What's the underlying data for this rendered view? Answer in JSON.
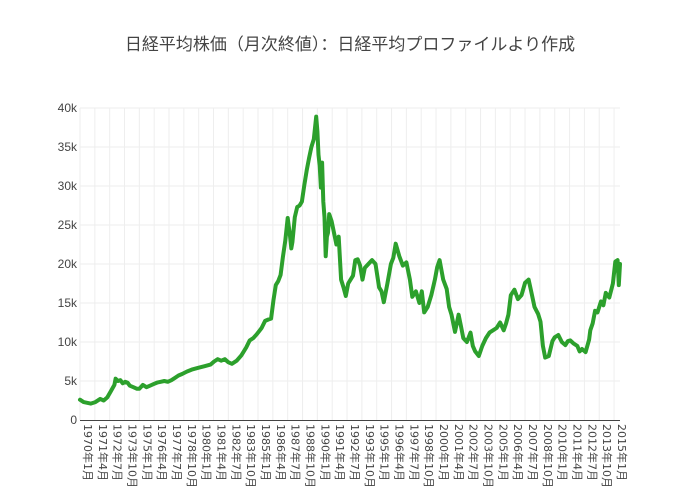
{
  "chart_data": {
    "type": "line",
    "title": "日経平均株価（月次終値）：日経平均プロファイルより作成",
    "xlabel": "",
    "ylabel": "",
    "ylim": [
      0,
      40000
    ],
    "yticks": [
      {
        "value": 0,
        "label": "0"
      },
      {
        "value": 5000,
        "label": "5k"
      },
      {
        "value": 10000,
        "label": "10k"
      },
      {
        "value": 15000,
        "label": "15k"
      },
      {
        "value": 20000,
        "label": "20k"
      },
      {
        "value": 25000,
        "label": "25k"
      },
      {
        "value": 30000,
        "label": "30k"
      },
      {
        "value": 35000,
        "label": "35k"
      },
      {
        "value": 40000,
        "label": "40k"
      }
    ],
    "xlim": [
      1970.0,
      2015.5
    ],
    "xticks": [
      {
        "value": 1970.0,
        "label": "1970年1月"
      },
      {
        "value": 1971.25,
        "label": "1971年4月"
      },
      {
        "value": 1972.5,
        "label": "1972年7月"
      },
      {
        "value": 1973.75,
        "label": "1973年10月"
      },
      {
        "value": 1975.0,
        "label": "1975年1月"
      },
      {
        "value": 1976.25,
        "label": "1976年4月"
      },
      {
        "value": 1977.5,
        "label": "1977年7月"
      },
      {
        "value": 1978.75,
        "label": "1978年10月"
      },
      {
        "value": 1980.0,
        "label": "1980年1月"
      },
      {
        "value": 1981.25,
        "label": "1981年4月"
      },
      {
        "value": 1982.5,
        "label": "1982年7月"
      },
      {
        "value": 1983.75,
        "label": "1983年10月"
      },
      {
        "value": 1985.0,
        "label": "1985年1月"
      },
      {
        "value": 1986.25,
        "label": "1986年4月"
      },
      {
        "value": 1987.5,
        "label": "1987年7月"
      },
      {
        "value": 1988.75,
        "label": "1988年10月"
      },
      {
        "value": 1990.0,
        "label": "1990年1月"
      },
      {
        "value": 1991.25,
        "label": "1991年4月"
      },
      {
        "value": 1992.5,
        "label": "1992年7月"
      },
      {
        "value": 1993.75,
        "label": "1993年10月"
      },
      {
        "value": 1995.0,
        "label": "1995年1月"
      },
      {
        "value": 1996.25,
        "label": "1996年4月"
      },
      {
        "value": 1997.5,
        "label": "1997年7月"
      },
      {
        "value": 1998.75,
        "label": "1998年10月"
      },
      {
        "value": 2000.0,
        "label": "2000年1月"
      },
      {
        "value": 2001.25,
        "label": "2001年4月"
      },
      {
        "value": 2002.5,
        "label": "2002年7月"
      },
      {
        "value": 2003.75,
        "label": "2003年10月"
      },
      {
        "value": 2005.0,
        "label": "2005年1月"
      },
      {
        "value": 2006.25,
        "label": "2006年4月"
      },
      {
        "value": 2007.5,
        "label": "2007年7月"
      },
      {
        "value": 2008.75,
        "label": "2008年10月"
      },
      {
        "value": 2010.0,
        "label": "2010年1月"
      },
      {
        "value": 2011.25,
        "label": "2011年4月"
      },
      {
        "value": 2012.5,
        "label": "2012年7月"
      },
      {
        "value": 2013.75,
        "label": "2013年10月"
      },
      {
        "value": 2015.0,
        "label": "2015年1月"
      }
    ],
    "grid": true,
    "line_color": "#2ca02c",
    "series": [
      {
        "x": [
          1970.0,
          1970.3,
          1970.6,
          1970.9,
          1971.3,
          1971.7,
          1972.0,
          1972.3,
          1972.6,
          1972.9,
          1973.0,
          1973.2,
          1973.4,
          1973.6,
          1973.8,
          1974.0,
          1974.2,
          1974.5,
          1974.8,
          1975.0,
          1975.3,
          1975.6,
          1975.9,
          1976.2,
          1976.5,
          1976.8,
          1977.1,
          1977.4,
          1977.7,
          1978.0,
          1978.3,
          1978.6,
          1979.0,
          1979.5,
          1980.0,
          1980.5,
          1981.0,
          1981.3,
          1981.6,
          1981.9,
          1982.2,
          1982.5,
          1982.8,
          1983.2,
          1983.6,
          1984.0,
          1984.3,
          1984.6,
          1984.9,
          1985.3,
          1985.6,
          1985.9,
          1986.1,
          1986.3,
          1986.5,
          1986.7,
          1986.9,
          1987.1,
          1987.3,
          1987.5,
          1987.7,
          1987.8,
          1987.9,
          1988.1,
          1988.3,
          1988.5,
          1988.7,
          1988.9,
          1989.1,
          1989.3,
          1989.5,
          1989.7,
          1989.9,
          1990.0,
          1990.1,
          1990.2,
          1990.3,
          1990.4,
          1990.5,
          1990.6,
          1990.7,
          1990.8,
          1990.9,
          1991.0,
          1991.2,
          1991.4,
          1991.6,
          1991.8,
          1992.0,
          1992.2,
          1992.4,
          1992.6,
          1992.8,
          1993.0,
          1993.2,
          1993.4,
          1993.6,
          1993.8,
          1994.0,
          1994.3,
          1994.6,
          1994.9,
          1995.2,
          1995.4,
          1995.6,
          1995.9,
          1996.2,
          1996.4,
          1996.6,
          1996.9,
          1997.2,
          1997.5,
          1997.8,
          1998.0,
          1998.3,
          1998.6,
          1998.8,
          1999.0,
          1999.3,
          1999.6,
          1999.9,
          2000.1,
          2000.3,
          2000.6,
          2000.9,
          2001.1,
          2001.3,
          2001.6,
          2001.9,
          2002.1,
          2002.3,
          2002.6,
          2002.9,
          2003.1,
          2003.3,
          2003.6,
          2003.9,
          2004.2,
          2004.5,
          2004.8,
          2005.1,
          2005.4,
          2005.7,
          2005.9,
          2006.1,
          2006.3,
          2006.6,
          2006.9,
          2007.2,
          2007.5,
          2007.8,
          2008.0,
          2008.3,
          2008.6,
          2008.8,
          2009.0,
          2009.2,
          2009.5,
          2009.8,
          2010.0,
          2010.3,
          2010.6,
          2010.9,
          2011.1,
          2011.3,
          2011.6,
          2011.9,
          2012.1,
          2012.3,
          2012.6,
          2012.9,
          2013.0,
          2013.2,
          2013.4,
          2013.6,
          2013.9,
          2014.1,
          2014.3,
          2014.6,
          2014.9,
          2015.1,
          2015.3,
          2015.4,
          2015.5
        ],
        "y": [
          2600,
          2300,
          2200,
          2100,
          2300,
          2700,
          2500,
          2900,
          3700,
          4500,
          5300,
          5000,
          5100,
          4700,
          4900,
          4800,
          4400,
          4200,
          4000,
          4000,
          4500,
          4200,
          4400,
          4600,
          4800,
          4900,
          5000,
          4900,
          5100,
          5400,
          5700,
          5900,
          6200,
          6500,
          6700,
          6900,
          7100,
          7500,
          7800,
          7600,
          7800,
          7400,
          7200,
          7600,
          8300,
          9300,
          10200,
          10500,
          11000,
          11800,
          12700,
          12900,
          13000,
          15400,
          17300,
          17800,
          18600,
          20900,
          23000,
          25900,
          23500,
          22000,
          22800,
          26000,
          27300,
          27500,
          28000,
          30100,
          32000,
          33600,
          35000,
          36000,
          38900,
          37000,
          34000,
          32600,
          29800,
          33000,
          28000,
          26000,
          21000,
          23500,
          24000,
          26400,
          25500,
          24000,
          22500,
          23500,
          18000,
          17000,
          15900,
          17500,
          18000,
          18500,
          20500,
          20600,
          19800,
          18000,
          19500,
          20000,
          20500,
          20000,
          17000,
          16500,
          15100,
          17500,
          20000,
          20800,
          22600,
          21000,
          19800,
          20200,
          18000,
          15800,
          16500,
          15000,
          16500,
          13800,
          14500,
          16000,
          18000,
          19600,
          20500,
          18000,
          16800,
          14500,
          13500,
          11300,
          13500,
          12000,
          10500,
          10000,
          11200,
          9500,
          8800,
          8200,
          9500,
          10500,
          11200,
          11500,
          11800,
          12500,
          11500,
          12400,
          13500,
          16000,
          16700,
          15500,
          16000,
          17600,
          18000,
          16600,
          14500,
          13600,
          12600,
          9500,
          8000,
          8200,
          10100,
          10600,
          10900,
          10000,
          9600,
          10100,
          10200,
          9800,
          9500,
          8800,
          9100,
          8700,
          10300,
          11500,
          12400,
          14000,
          13800,
          15200,
          14700,
          16300,
          15700,
          17500,
          20300,
          20500,
          17300,
          20000
        ]
      }
    ]
  }
}
